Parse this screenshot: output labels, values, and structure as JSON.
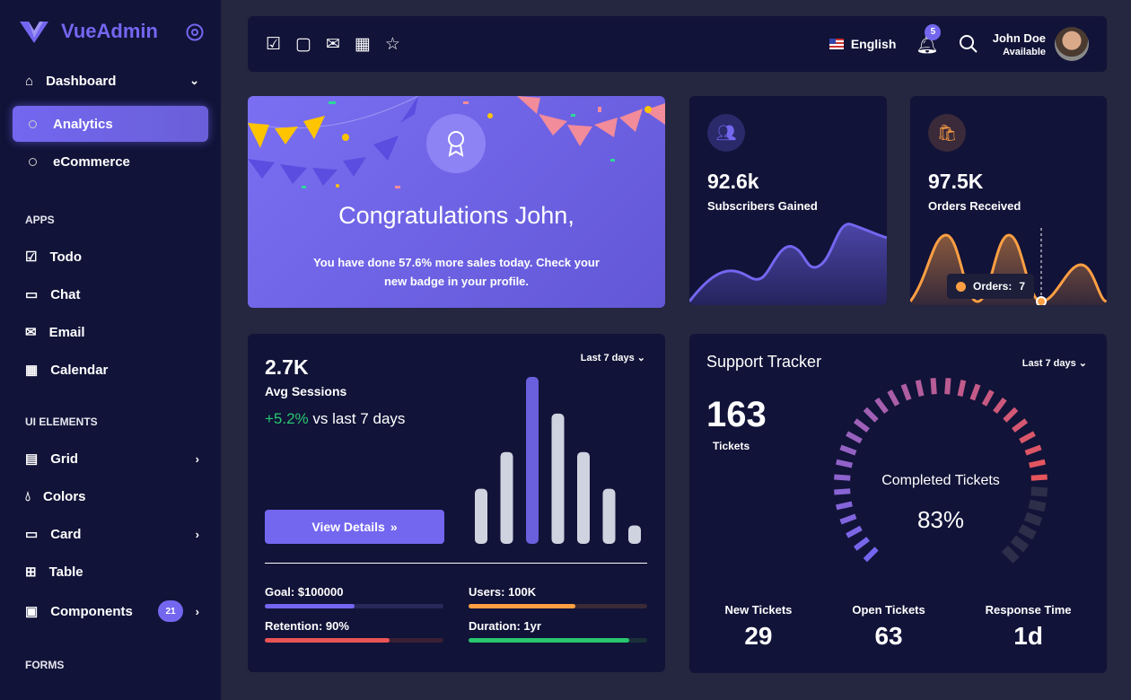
{
  "sidebar": {
    "brand": "VueAdmin",
    "dashboard": "Dashboard",
    "analytics": "Analytics",
    "ecommerce": "eCommerce",
    "apps_header": "APPS",
    "todo": "Todo",
    "chat": "Chat",
    "email": "Email",
    "calendar": "Calendar",
    "ui_header": "UI ELEMENTS",
    "grid": "Grid",
    "colors": "Colors",
    "card": "Card",
    "table": "Table",
    "components": "Components",
    "components_badge": "21",
    "forms_header": "FORMS"
  },
  "topbar": {
    "language": "English",
    "notifications": "5",
    "user_name": "John Doe",
    "user_status": "Available"
  },
  "congrats": {
    "title": "Congratulations John,",
    "text_pre": "You have done ",
    "highlight": "57.6%",
    "text_post": " more sales today. Check your new badge in your profile."
  },
  "subscribers": {
    "value": "92.6k",
    "label": "Subscribers Gained"
  },
  "orders": {
    "value": "97.5K",
    "label": "Orders Received",
    "tooltip_label": "Orders:",
    "tooltip_value": "7"
  },
  "sessions": {
    "value": "2.7K",
    "label": "Avg Sessions",
    "change": "+5.2%",
    "change_suffix": " vs last 7 days",
    "range": "Last 7 days",
    "button": "View Details",
    "chart_data": {
      "type": "bar",
      "values": [
        33,
        55,
        100,
        78,
        55,
        33,
        11
      ],
      "highlight_index": 2
    },
    "stats": [
      {
        "label": "Goal: $100000",
        "progress": 50,
        "color": "#7367f0",
        "track": "#27295a"
      },
      {
        "label": "Users: 100K",
        "progress": 60,
        "color": "#ff9f43",
        "track": "#3a2a35"
      },
      {
        "label": "Retention: 90%",
        "progress": 70,
        "color": "#ea5455",
        "track": "#3a2035"
      },
      {
        "label": "Duration: 1yr",
        "progress": 90,
        "color": "#28c76f",
        "track": "#1a3038"
      }
    ]
  },
  "support": {
    "title": "Support Tracker",
    "range": "Last 7 days",
    "tickets": "163",
    "tickets_label": "Tickets",
    "gauge_label": "Completed Tickets",
    "gauge_value": "83%",
    "gauge_percent": 83,
    "metrics": [
      {
        "label": "New Tickets",
        "value": "29"
      },
      {
        "label": "Open Tickets",
        "value": "63"
      },
      {
        "label": "Response Time",
        "value": "1d"
      }
    ]
  }
}
